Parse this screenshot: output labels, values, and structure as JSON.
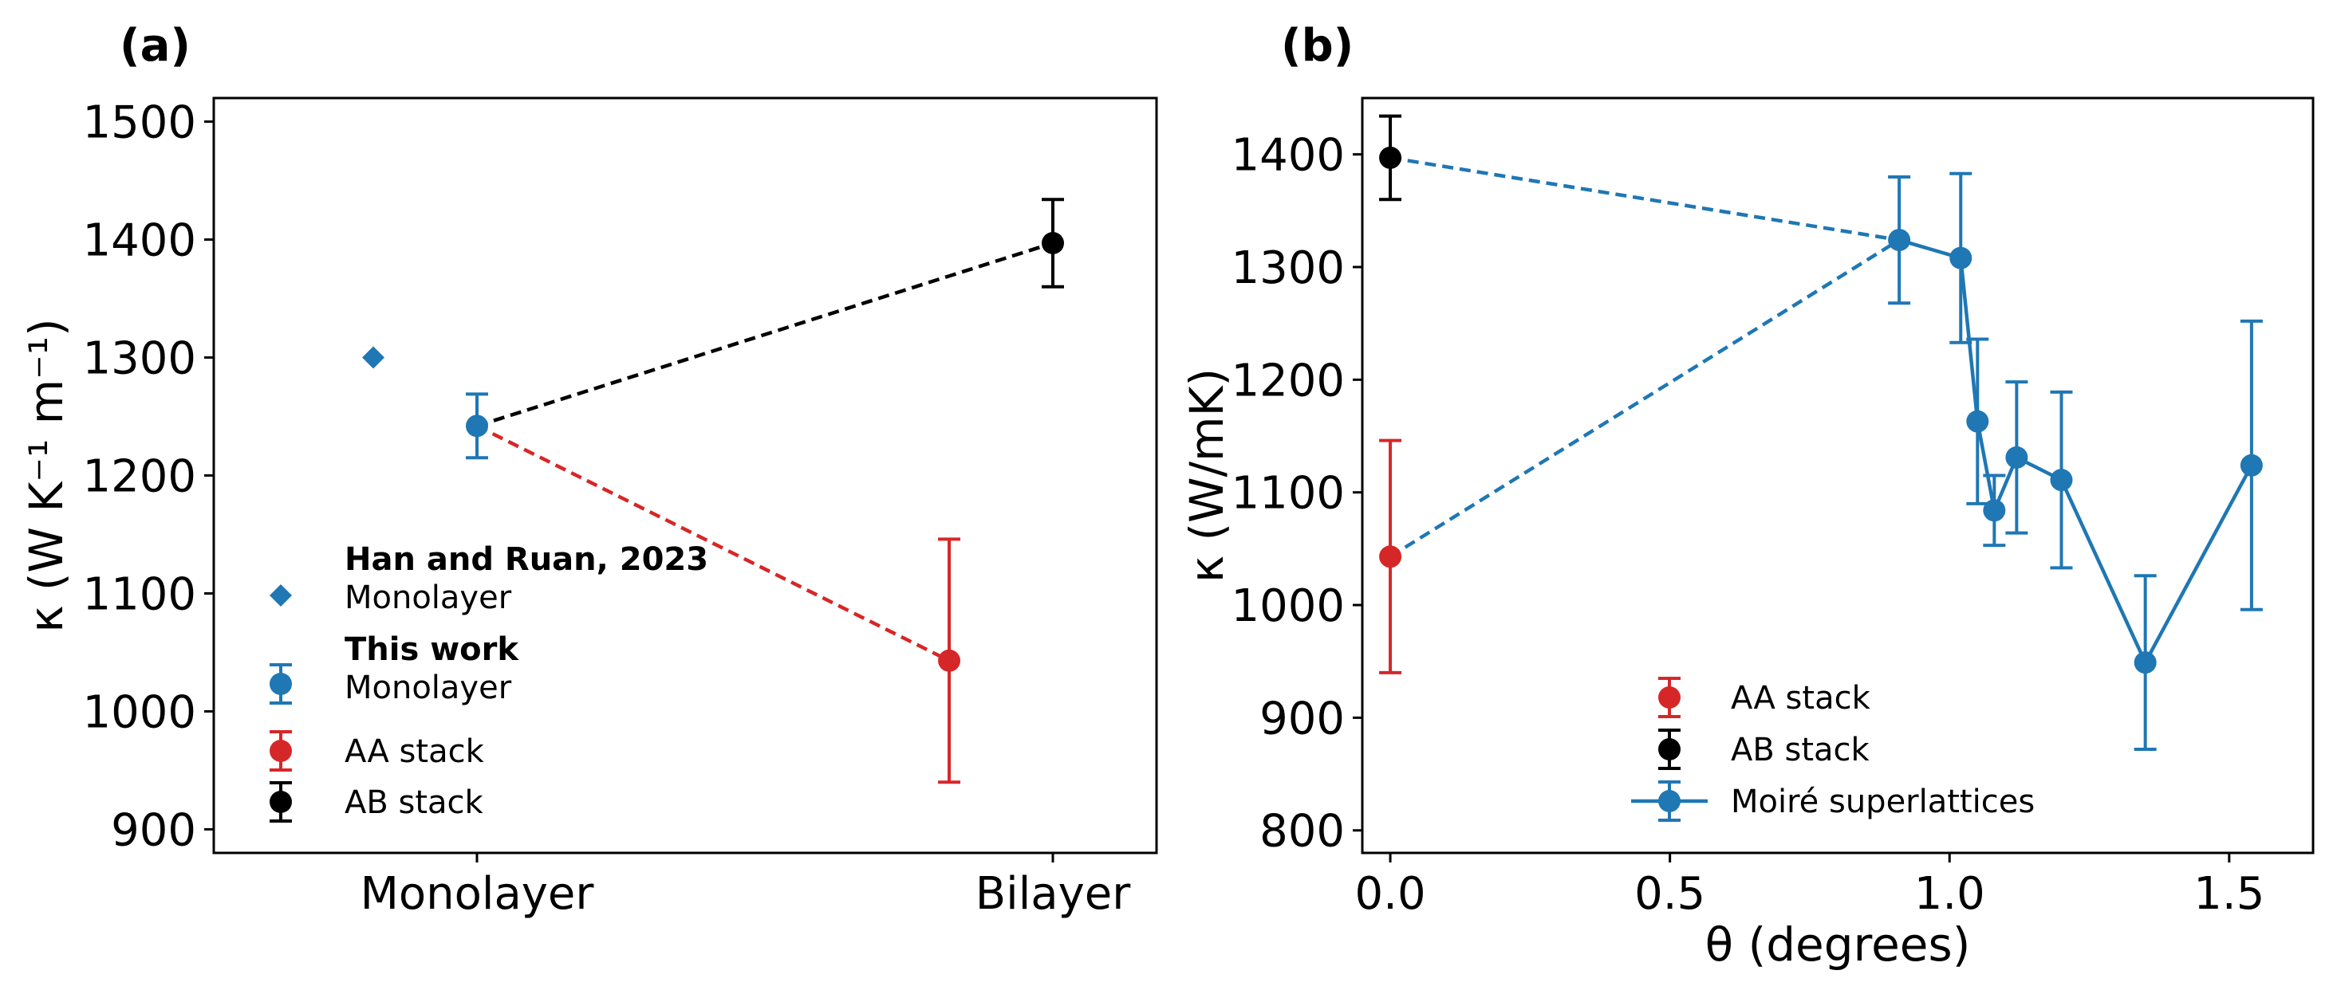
{
  "chart_data": [
    {
      "id": "a",
      "panel_label": "(a)",
      "type": "scatter",
      "ylabel": "κ (W K⁻¹ m⁻¹)",
      "xlabel": "",
      "categories": [
        "Monolayer",
        "Bilayer"
      ],
      "ylim": [
        880,
        1520
      ],
      "yticks": [
        900,
        1000,
        1100,
        1200,
        1300,
        1400,
        1500
      ],
      "series": [
        {
          "name": "Han and Ruan, 2023 Monolayer",
          "color": "#1f77b4",
          "marker": "diamond",
          "points": [
            {
              "x": -0.18,
              "y": 1300
            }
          ]
        },
        {
          "name": "This work Monolayer",
          "color": "#1f77b4",
          "marker": "circle",
          "points": [
            {
              "x": 0,
              "y": 1242,
              "err": 27
            }
          ]
        },
        {
          "name": "AA stack",
          "color": "#d62728",
          "marker": "circle",
          "points": [
            {
              "x": 0.82,
              "y": 1043,
              "err": 103
            }
          ]
        },
        {
          "name": "AB stack",
          "color": "#000000",
          "marker": "circle",
          "points": [
            {
              "x": 1.0,
              "y": 1397,
              "err": 37
            }
          ]
        }
      ],
      "lines": [
        {
          "from": [
            0,
            1242
          ],
          "to": [
            1.0,
            1397
          ],
          "color": "#000000",
          "style": "dashed"
        },
        {
          "from": [
            0,
            1242
          ],
          "to": [
            0.82,
            1043
          ],
          "color": "#d62728",
          "style": "dashed"
        }
      ],
      "legend": [
        {
          "bold": "Han and Ruan, 2023",
          "text": "Monolayer",
          "color": "#1f77b4",
          "marker": "diamond",
          "errorbar": false
        },
        {
          "bold": "This work",
          "text": "Monolayer",
          "color": "#1f77b4",
          "marker": "circle",
          "errorbar": true
        },
        {
          "bold": "",
          "text": "AA stack",
          "color": "#d62728",
          "marker": "circle",
          "errorbar": true
        },
        {
          "bold": "",
          "text": "AB stack",
          "color": "#000000",
          "marker": "circle",
          "errorbar": true
        }
      ],
      "legend_position": "lower-left"
    },
    {
      "id": "b",
      "panel_label": "(b)",
      "type": "line",
      "ylabel": "κ (W/mK)",
      "xlabel": "θ (degrees)",
      "xlim": [
        -0.05,
        1.65
      ],
      "ylim": [
        780,
        1450
      ],
      "xticks": [
        0.0,
        0.5,
        1.0,
        1.5
      ],
      "xtick_labels": [
        "0.0",
        "0.5",
        "1.0",
        "1.5"
      ],
      "yticks": [
        800,
        900,
        1000,
        1100,
        1200,
        1300,
        1400
      ],
      "series": [
        {
          "name": "AA stack",
          "color": "#d62728",
          "points": [
            {
              "x": 0,
              "y": 1043,
              "err": 103
            }
          ]
        },
        {
          "name": "AB stack",
          "color": "#000000",
          "points": [
            {
              "x": 0,
              "y": 1397,
              "err": 37
            }
          ]
        },
        {
          "name": "Moiré superlattices",
          "color": "#1f77b4",
          "connected": true,
          "points": [
            {
              "x": 0.91,
              "y": 1324,
              "err": 56
            },
            {
              "x": 1.02,
              "y": 1308,
              "err": 75
            },
            {
              "x": 1.05,
              "y": 1163,
              "err": 73
            },
            {
              "x": 1.08,
              "y": 1084,
              "err": 31
            },
            {
              "x": 1.12,
              "y": 1131,
              "err": 67
            },
            {
              "x": 1.2,
              "y": 1111,
              "err": 78
            },
            {
              "x": 1.35,
              "y": 949,
              "err": 77
            },
            {
              "x": 1.54,
              "y": 1124,
              "err": 128
            }
          ]
        }
      ],
      "lines": [
        {
          "from": [
            0,
            1397
          ],
          "to": [
            0.91,
            1324
          ],
          "color": "#1f77b4",
          "style": "dashed"
        },
        {
          "from": [
            0,
            1043
          ],
          "to": [
            0.91,
            1324
          ],
          "color": "#1f77b4",
          "style": "dashed"
        }
      ],
      "legend": [
        {
          "text": "AA stack",
          "color": "#d62728",
          "type": "errorbar"
        },
        {
          "text": "AB stack",
          "color": "#000000",
          "type": "errorbar"
        },
        {
          "text": "Moiré superlattices",
          "color": "#1f77b4",
          "type": "line-errorbar"
        }
      ],
      "legend_position": "lower-center"
    }
  ]
}
